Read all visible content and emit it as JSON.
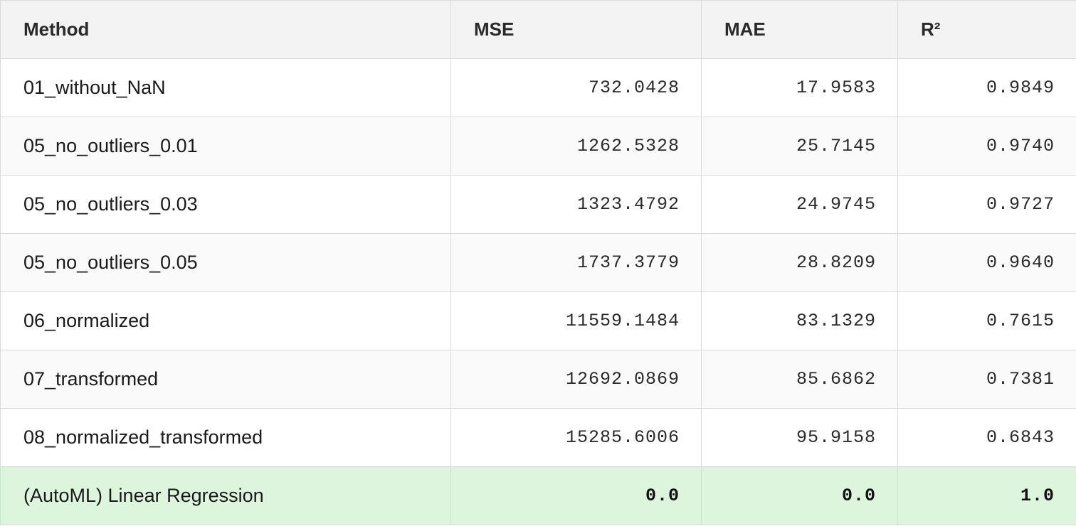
{
  "table": {
    "headers": {
      "method": "Method",
      "mse": "MSE",
      "mae": "MAE",
      "r2": "R²"
    },
    "rows": [
      {
        "method": "01_without_NaN",
        "mse": "732.0428",
        "mae": "17.9583",
        "r2": "0.9849"
      },
      {
        "method": "05_no_outliers_0.01",
        "mse": "1262.5328",
        "mae": "25.7145",
        "r2": "0.9740"
      },
      {
        "method": "05_no_outliers_0.03",
        "mse": "1323.4792",
        "mae": "24.9745",
        "r2": "0.9727"
      },
      {
        "method": "05_no_outliers_0.05",
        "mse": "1737.3779",
        "mae": "28.8209",
        "r2": "0.9640"
      },
      {
        "method": "06_normalized",
        "mse": "11559.1484",
        "mae": "83.1329",
        "r2": "0.7615"
      },
      {
        "method": "07_transformed",
        "mse": "12692.0869",
        "mae": "85.6862",
        "r2": "0.7381"
      },
      {
        "method": "08_normalized_transformed",
        "mse": "15285.6006",
        "mae": "95.9158",
        "r2": "0.6843"
      },
      {
        "method": "(AutoML) Linear Regression",
        "mse": "0.0",
        "mae": "0.0",
        "r2": "1.0"
      }
    ],
    "highlight_color": "#dcf5dc"
  }
}
